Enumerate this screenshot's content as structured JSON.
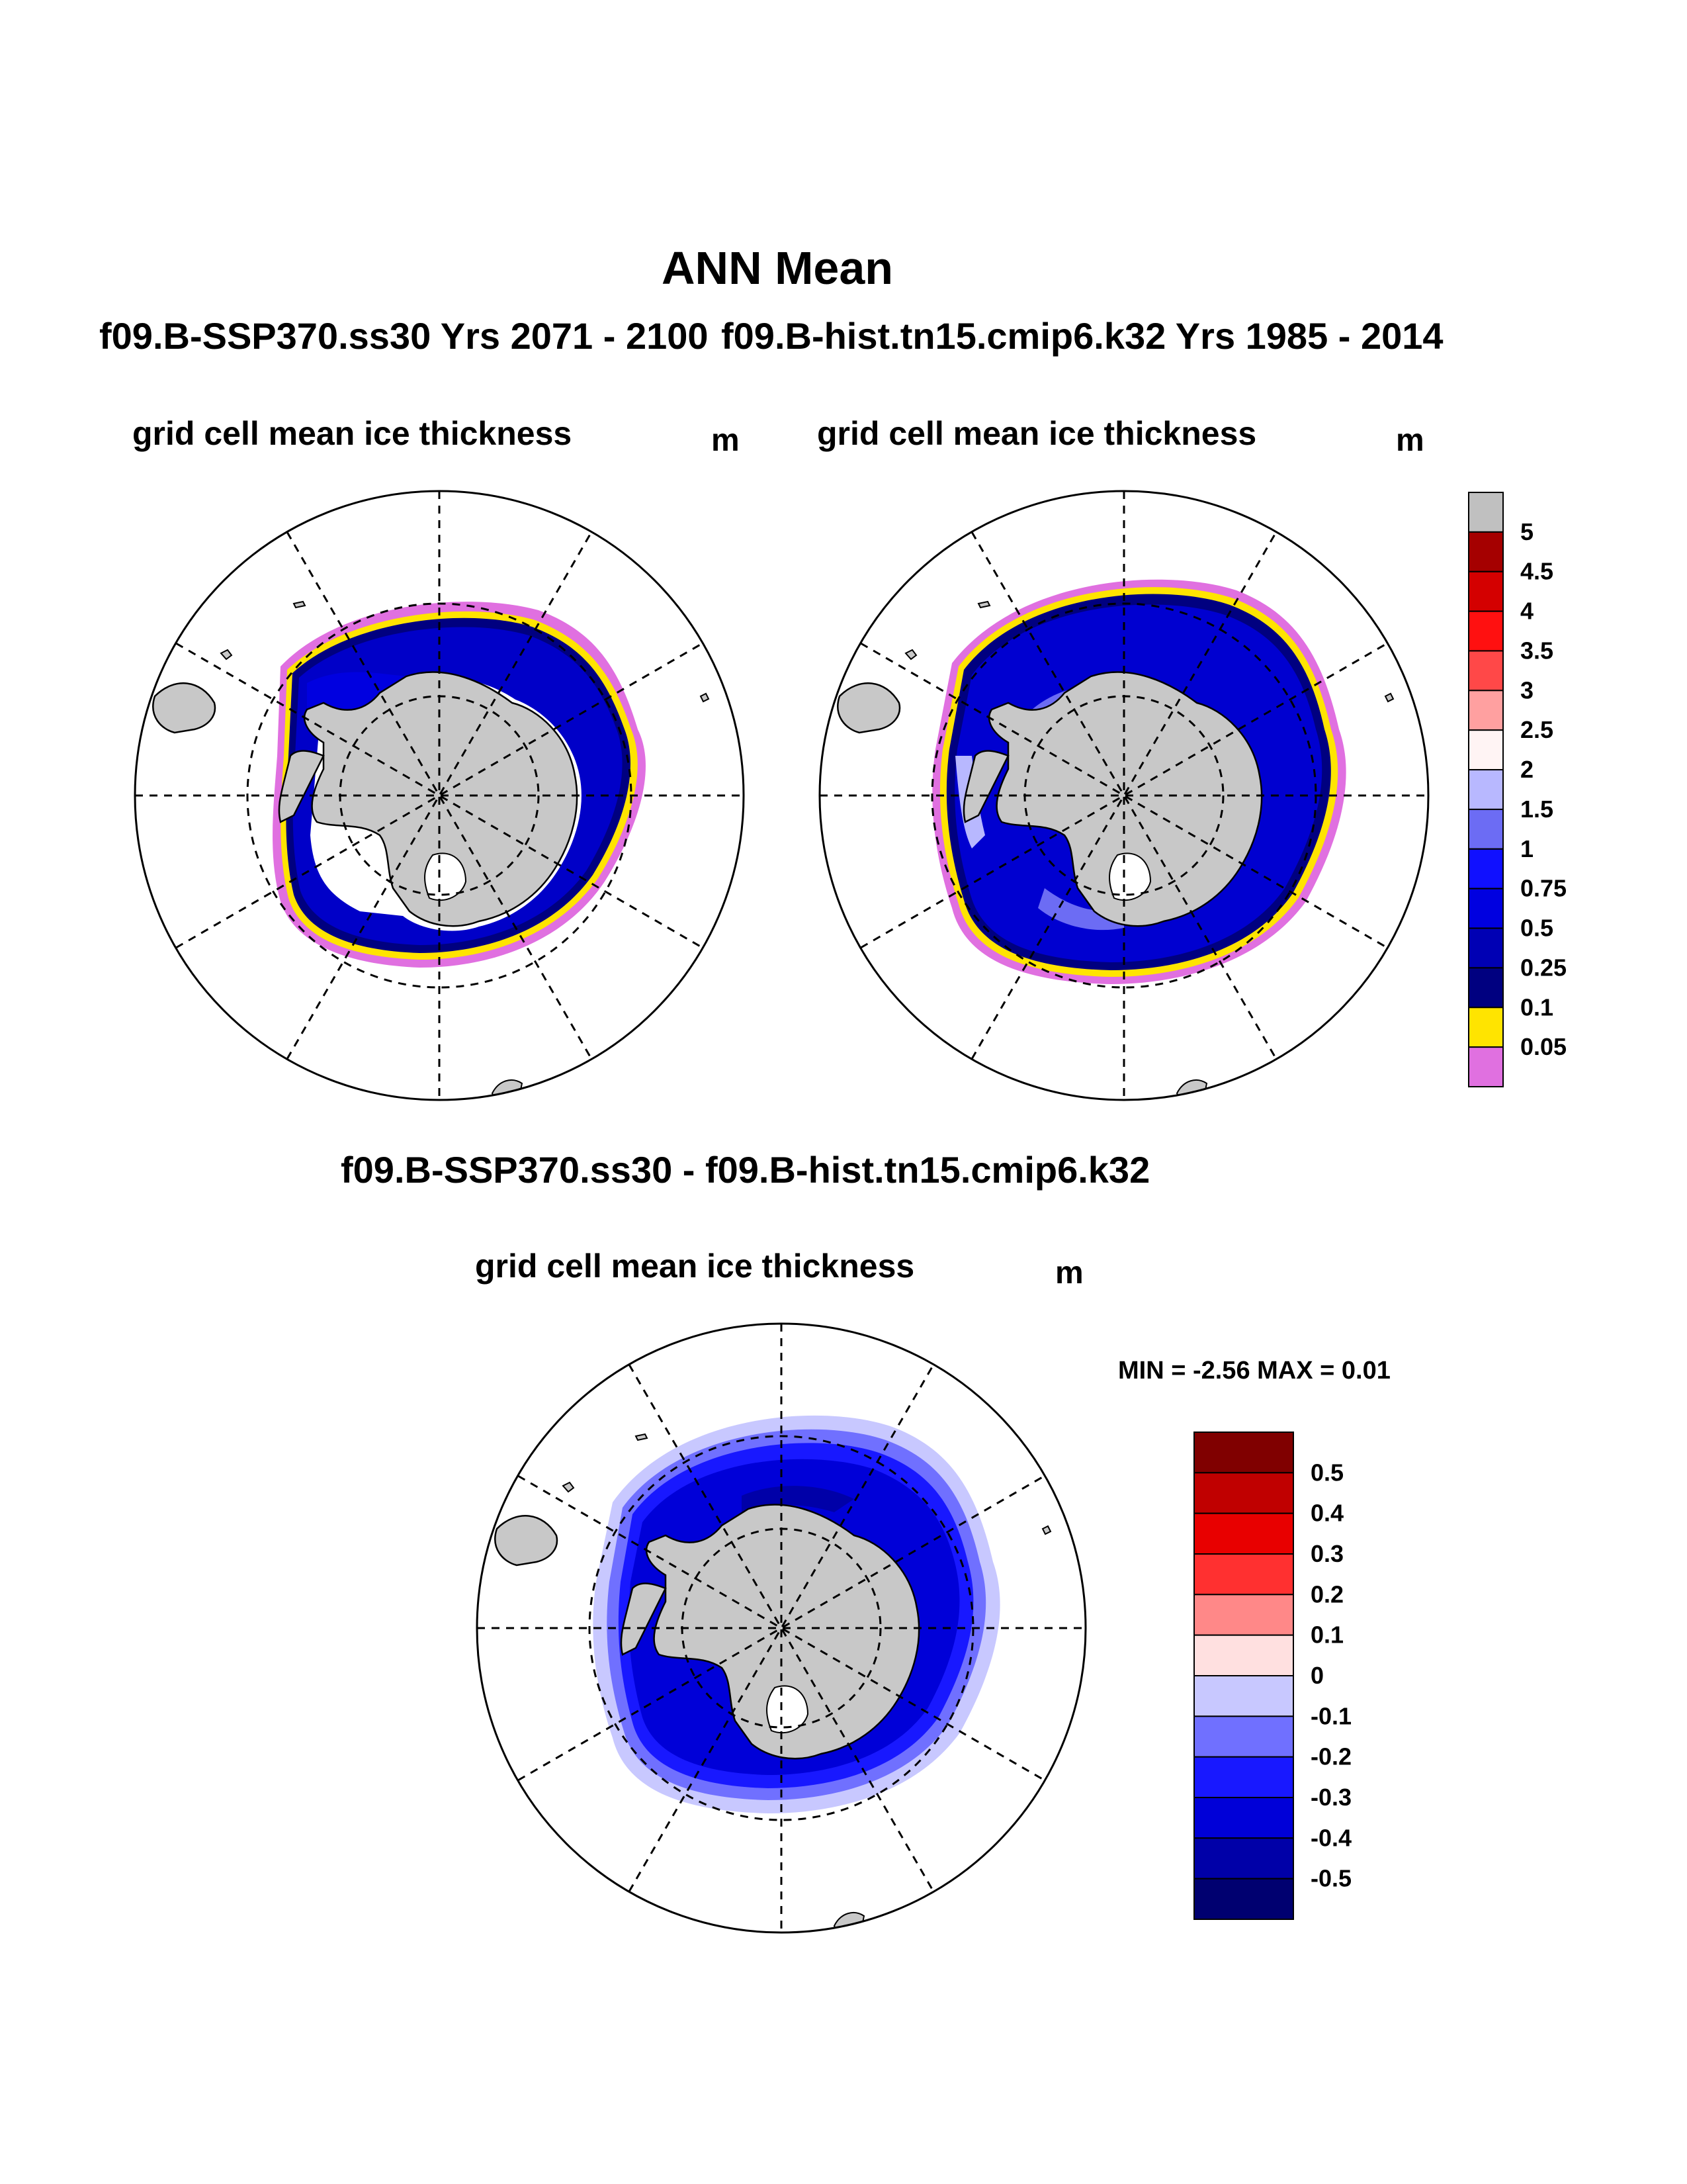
{
  "figure": {
    "title": "ANN Mean",
    "variable": "grid cell mean ice thickness",
    "units": "m"
  },
  "panels": [
    {
      "run_label": "f09.B-SSP370.ss30  Yrs 2071 - 2100",
      "subtitle": "grid cell mean ice thickness",
      "units": "m"
    },
    {
      "run_label": "f09.B-hist.tn15.cmip6.k32  Yrs 1985 - 2014",
      "subtitle": "grid cell mean ice thickness",
      "units": "m"
    },
    {
      "run_label": "f09.B-SSP370.ss30 - f09.B-hist.tn15.cmip6.k32",
      "subtitle": "grid cell mean ice thickness",
      "units": "m",
      "min_max": "MIN =  -2.56 MAX =   0.01"
    }
  ],
  "colorbar_thickness": {
    "labels": [
      "5",
      "4.5",
      "4",
      "3.5",
      "3",
      "2.5",
      "2",
      "1.5",
      "1",
      "0.75",
      "0.5",
      "0.25",
      "0.1",
      "0.05"
    ],
    "colors": [
      "#c0c0c0",
      "#a50000",
      "#d40000",
      "#ff1010",
      "#ff4848",
      "#ffa0a0",
      "#fff4f4",
      "#b8b8ff",
      "#6c6cf4",
      "#1010ff",
      "#0000e0",
      "#0000b4",
      "#000080",
      "#ffe400",
      "#e070e0"
    ]
  },
  "colorbar_difference": {
    "labels": [
      "0.5",
      "0.4",
      "0.3",
      "0.2",
      "0.1",
      "0",
      "-0.1",
      "-0.2",
      "-0.3",
      "-0.4",
      "-0.5"
    ],
    "colors": [
      "#800000",
      "#c00000",
      "#e80000",
      "#ff3030",
      "#ff8888",
      "#ffe0e0",
      "#c8c8ff",
      "#7070ff",
      "#1818ff",
      "#0000d8",
      "#0000a8",
      "#000070"
    ]
  },
  "colors": {
    "land": "#c8c8c8",
    "outline": "#000000",
    "ice_yellow": "#ffe400",
    "ice_pink": "#e070e0"
  }
}
